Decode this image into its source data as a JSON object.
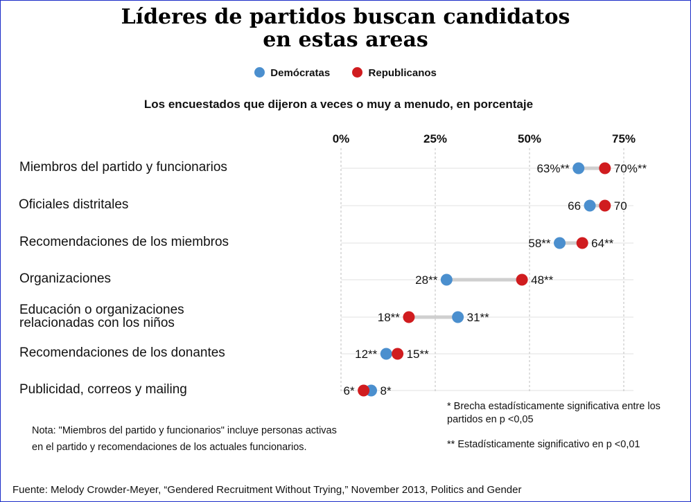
{
  "title_lines": [
    "Líderes de partidos buscan candidatos",
    "en estas areas"
  ],
  "subtitle": "Los encuestados que dijeron a veces o muy a menudo, en porcentaje",
  "legend": [
    {
      "name": "Demócratas",
      "color": "#4b8fce"
    },
    {
      "name": "Republicanos",
      "color": "#d01c1f"
    }
  ],
  "chart_data": {
    "type": "scatter",
    "xlim": [
      0,
      75
    ],
    "ticks": [
      0,
      25,
      50,
      75
    ],
    "tick_labels": [
      "0%",
      "25%",
      "50%",
      "75%"
    ],
    "grid": true,
    "legend_position": "top-center",
    "categories": [
      "Miembros del partido y funcionarios",
      "Oficiales distritales",
      "Recomendaciones de los miembros",
      "Organizaciones",
      "Educación o organizaciones relacionadas con los niños",
      "Recomendaciones de los donantes",
      "Publicidad, correos y mailing"
    ],
    "category_lines": [
      [
        "Miembros del partido y funcionarios"
      ],
      [
        "Oficiales distritales"
      ],
      [
        "Recomendaciones de los miembros"
      ],
      [
        "Organizaciones"
      ],
      [
        "Educación o organizaciones",
        "relacionadas con los niños"
      ],
      [
        "Recomendaciones de los donantes"
      ],
      [
        "Publicidad, correos y mailing"
      ]
    ],
    "series": [
      {
        "name": "Demócratas",
        "color": "#4b8fce",
        "values": [
          63,
          66,
          58,
          28,
          31,
          12,
          8
        ],
        "labels": [
          "63%**",
          "66",
          "58**",
          "28**",
          "31**",
          "12**",
          "8*"
        ]
      },
      {
        "name": "Republicanos",
        "color": "#d01c1f",
        "values": [
          70,
          70,
          64,
          48,
          18,
          15,
          6
        ],
        "labels": [
          "70%**",
          "70",
          "64**",
          "48**",
          "18**",
          "15**",
          "6*"
        ]
      }
    ]
  },
  "footnotes": {
    "single_star": "* Brecha estadísticamente significativa entre los partidos en p <0,05",
    "double_star": "** Estadísticamente significativo en p <0,01"
  },
  "note": {
    "line1": "Nota: \"Miembros del partido y funcionarios\" incluye personas activas",
    "line2": "en el partido y recomendaciones de los actuales funcionarios."
  },
  "source": "Fuente: Melody Crowder-Meyer, “Gendered Recruitment Without Trying,” November 2013, Politics and Gender"
}
